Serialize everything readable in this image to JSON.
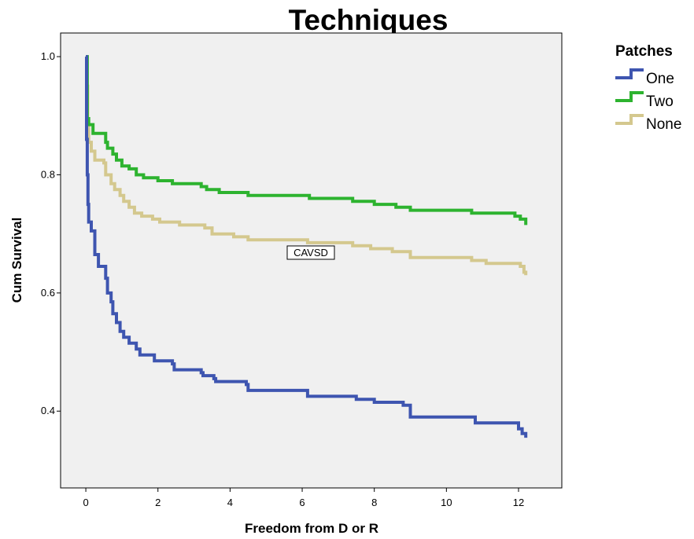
{
  "chart_data": {
    "type": "line",
    "title": "Techniques",
    "xlabel": "Freedom from D or R",
    "ylabel": "Cum Survival",
    "xlim": [
      -0.7,
      13.2
    ],
    "ylim": [
      0.27,
      1.04
    ],
    "xticks": [
      0,
      2,
      4,
      6,
      8,
      10,
      12
    ],
    "yticks": [
      0.4,
      0.6,
      0.8,
      1.0
    ],
    "xtick_labels": [
      "0",
      "2",
      "4",
      "6",
      "8",
      "10",
      "12"
    ],
    "ytick_labels": [
      "0.4",
      "0.6",
      "0.8",
      "1.0"
    ],
    "grid": false,
    "plot_background": "#f0f0f0",
    "legend": {
      "title": "Patches",
      "placement": "right"
    },
    "annotation": "CAVSD",
    "series": [
      {
        "name": "One",
        "color": "#3e55b0",
        "step": true,
        "points": [
          [
            0,
            1.0
          ],
          [
            0.02,
            0.86
          ],
          [
            0.04,
            0.8
          ],
          [
            0.06,
            0.75
          ],
          [
            0.08,
            0.72
          ],
          [
            0.15,
            0.705
          ],
          [
            0.25,
            0.665
          ],
          [
            0.35,
            0.645
          ],
          [
            0.55,
            0.625
          ],
          [
            0.6,
            0.6
          ],
          [
            0.7,
            0.585
          ],
          [
            0.75,
            0.565
          ],
          [
            0.85,
            0.55
          ],
          [
            0.95,
            0.535
          ],
          [
            1.05,
            0.525
          ],
          [
            1.2,
            0.515
          ],
          [
            1.4,
            0.505
          ],
          [
            1.5,
            0.495
          ],
          [
            1.85,
            0.495
          ],
          [
            1.9,
            0.485
          ],
          [
            2.4,
            0.48
          ],
          [
            2.45,
            0.47
          ],
          [
            3.2,
            0.465
          ],
          [
            3.25,
            0.46
          ],
          [
            3.55,
            0.455
          ],
          [
            3.6,
            0.45
          ],
          [
            4.45,
            0.445
          ],
          [
            4.5,
            0.435
          ],
          [
            5.6,
            0.435
          ],
          [
            6.15,
            0.425
          ],
          [
            7.5,
            0.42
          ],
          [
            8.0,
            0.415
          ],
          [
            8.8,
            0.41
          ],
          [
            9.0,
            0.39
          ],
          [
            10.8,
            0.38
          ],
          [
            12.0,
            0.37
          ],
          [
            12.1,
            0.362
          ],
          [
            12.2,
            0.355
          ]
        ]
      },
      {
        "name": "Two",
        "color": "#2db32f",
        "step": true,
        "points": [
          [
            0,
            1.0
          ],
          [
            0.04,
            0.895
          ],
          [
            0.08,
            0.885
          ],
          [
            0.2,
            0.87
          ],
          [
            0.55,
            0.855
          ],
          [
            0.6,
            0.845
          ],
          [
            0.75,
            0.835
          ],
          [
            0.85,
            0.825
          ],
          [
            1.0,
            0.815
          ],
          [
            1.2,
            0.81
          ],
          [
            1.4,
            0.8
          ],
          [
            1.6,
            0.795
          ],
          [
            2.0,
            0.79
          ],
          [
            2.4,
            0.785
          ],
          [
            2.5,
            0.785
          ],
          [
            3.2,
            0.78
          ],
          [
            3.35,
            0.775
          ],
          [
            3.7,
            0.77
          ],
          [
            4.5,
            0.765
          ],
          [
            5.2,
            0.765
          ],
          [
            6.2,
            0.76
          ],
          [
            7.4,
            0.755
          ],
          [
            8.0,
            0.75
          ],
          [
            8.6,
            0.745
          ],
          [
            9.0,
            0.74
          ],
          [
            10.7,
            0.735
          ],
          [
            11.9,
            0.73
          ],
          [
            12.05,
            0.725
          ],
          [
            12.2,
            0.715
          ]
        ]
      },
      {
        "name": "None",
        "color": "#d4c88e",
        "step": true,
        "points": [
          [
            0,
            1.0
          ],
          [
            0.02,
            0.95
          ],
          [
            0.05,
            0.88
          ],
          [
            0.08,
            0.855
          ],
          [
            0.15,
            0.84
          ],
          [
            0.25,
            0.825
          ],
          [
            0.5,
            0.82
          ],
          [
            0.55,
            0.8
          ],
          [
            0.7,
            0.785
          ],
          [
            0.8,
            0.775
          ],
          [
            0.95,
            0.765
          ],
          [
            1.05,
            0.755
          ],
          [
            1.2,
            0.745
          ],
          [
            1.35,
            0.735
          ],
          [
            1.55,
            0.73
          ],
          [
            1.85,
            0.725
          ],
          [
            2.05,
            0.72
          ],
          [
            2.6,
            0.715
          ],
          [
            3.3,
            0.71
          ],
          [
            3.5,
            0.7
          ],
          [
            4.1,
            0.695
          ],
          [
            4.5,
            0.69
          ],
          [
            5.2,
            0.69
          ],
          [
            6.15,
            0.685
          ],
          [
            7.4,
            0.68
          ],
          [
            7.9,
            0.675
          ],
          [
            8.5,
            0.67
          ],
          [
            9.0,
            0.66
          ],
          [
            10.7,
            0.655
          ],
          [
            11.1,
            0.65
          ],
          [
            12.05,
            0.645
          ],
          [
            12.15,
            0.635
          ],
          [
            12.2,
            0.63
          ]
        ]
      }
    ]
  }
}
